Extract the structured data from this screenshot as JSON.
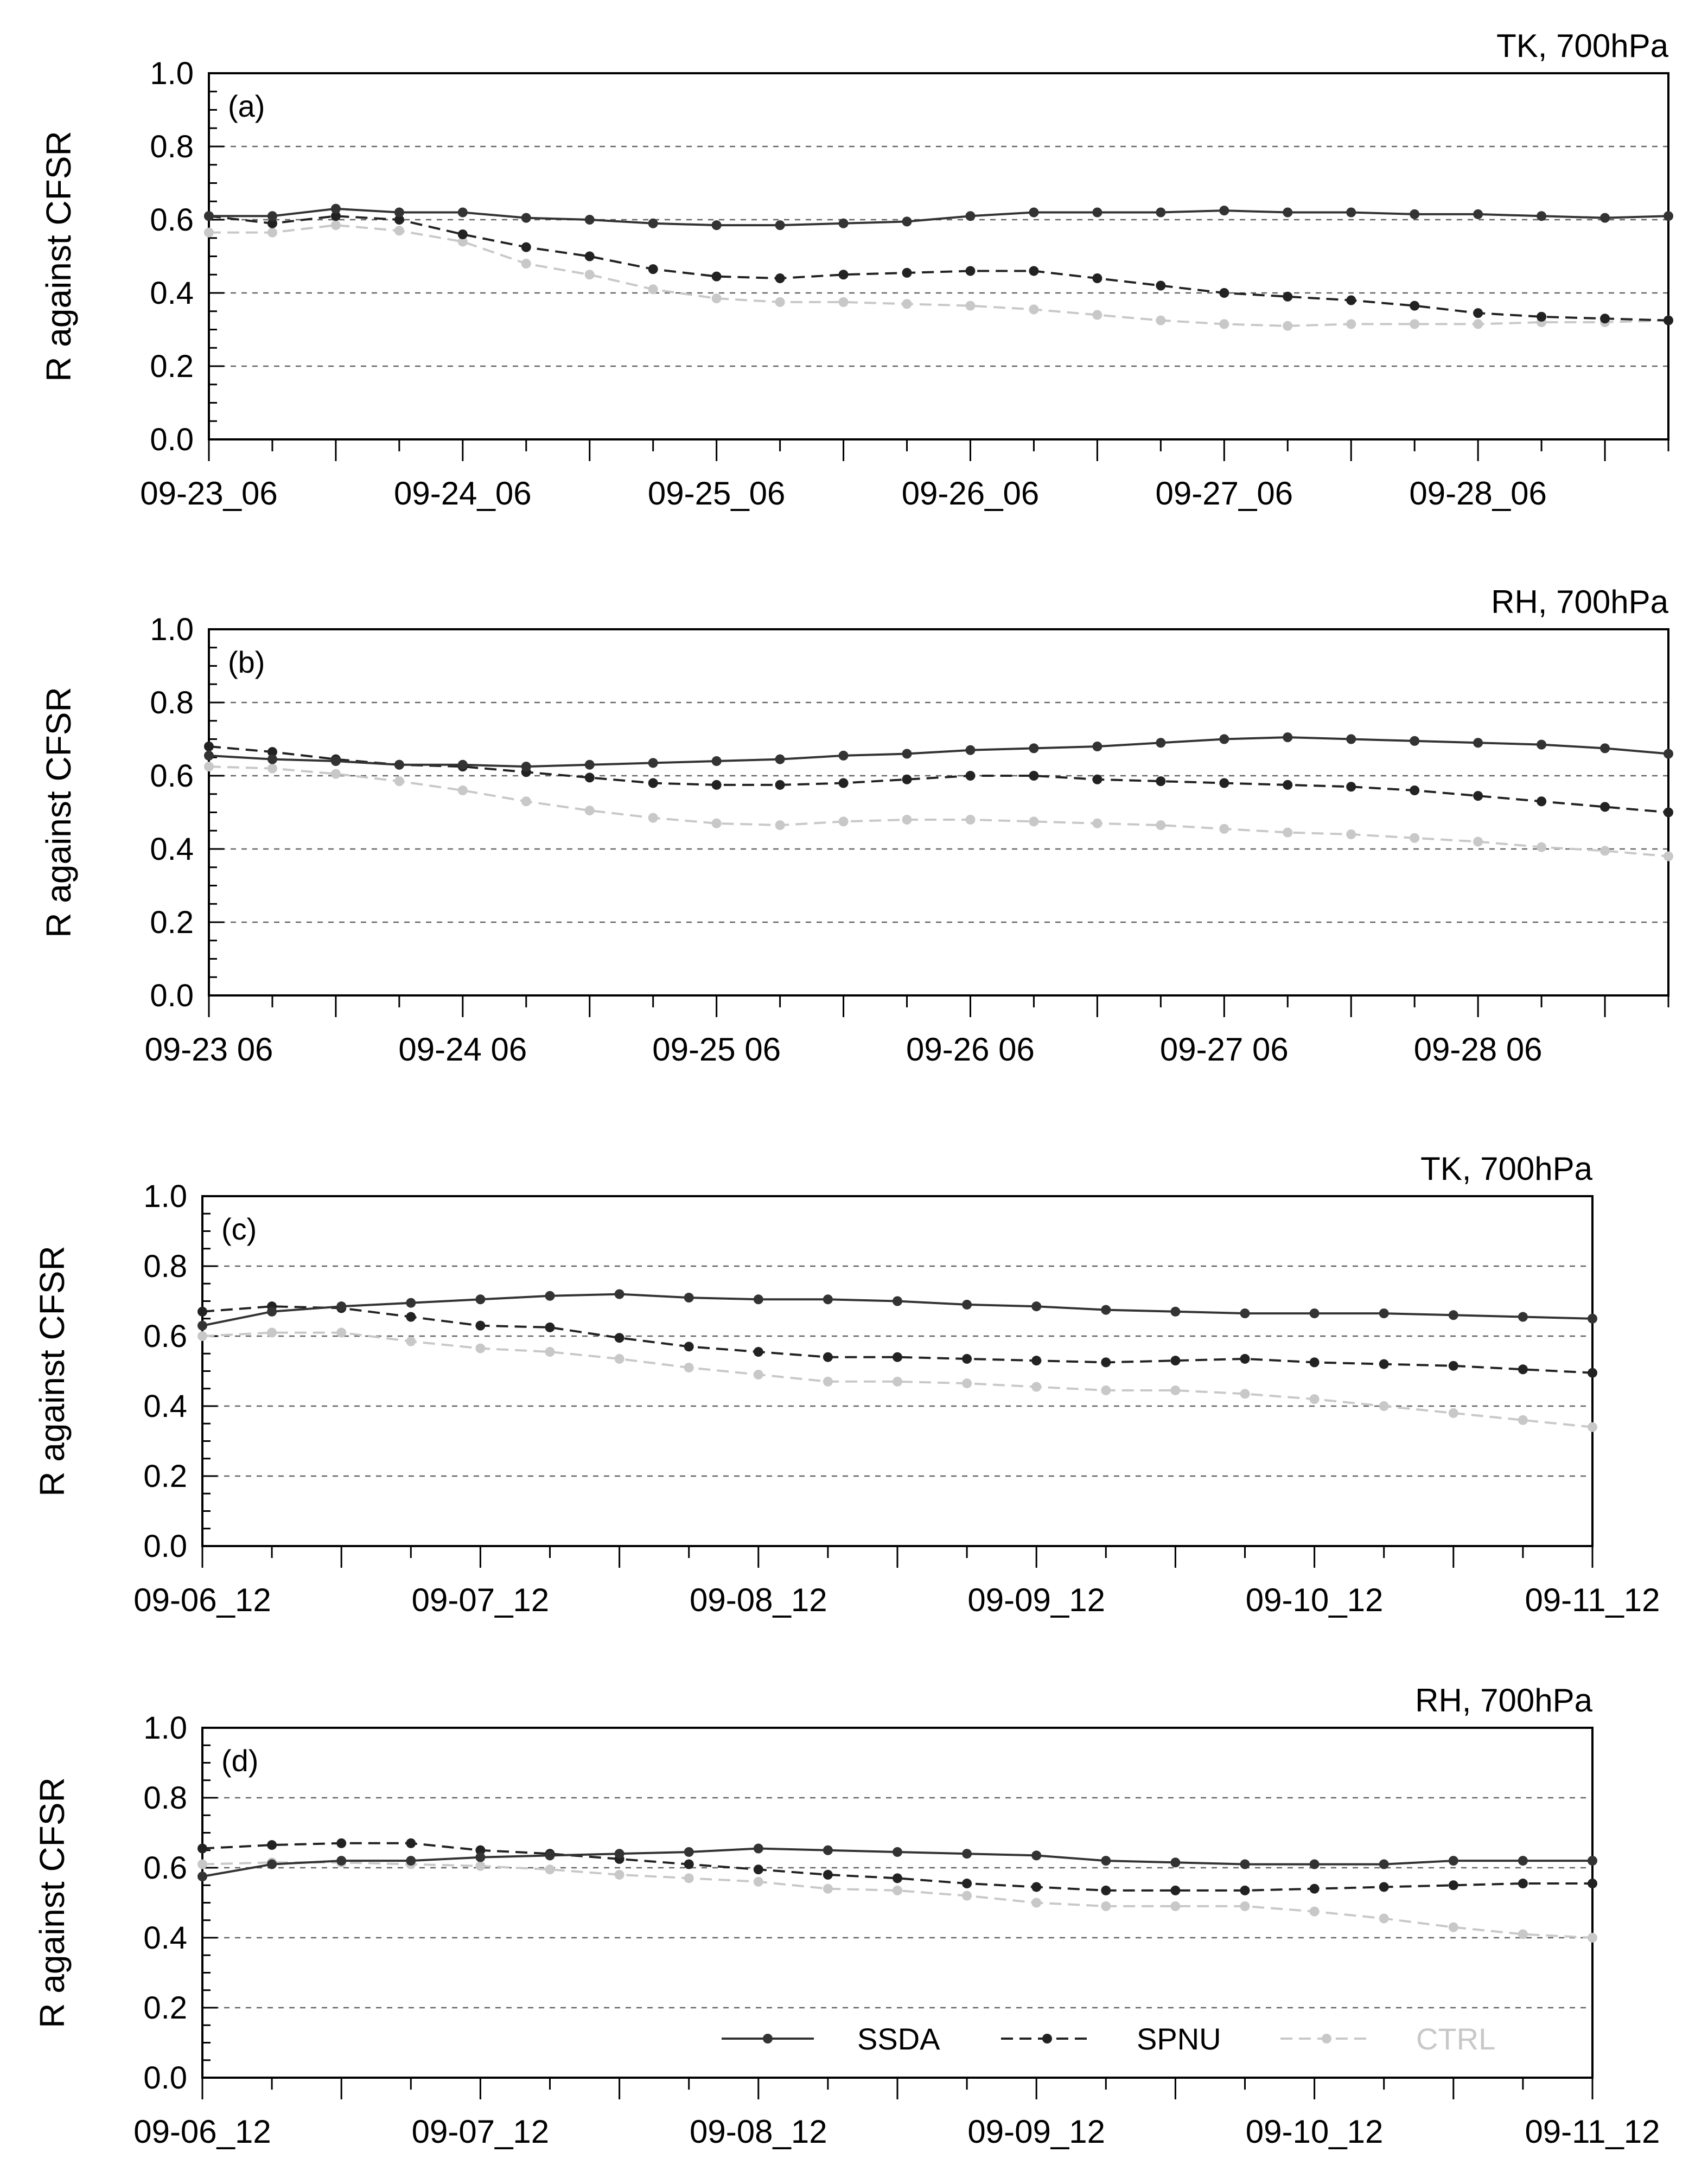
{
  "chart_data": [
    {
      "type": "line",
      "panel": "(a)",
      "title": "TK, 700hPa",
      "ylabel": "R against CFSR",
      "ylim": [
        0,
        1
      ],
      "yticks": [
        "0.0",
        "0.2",
        "0.4",
        "0.6",
        "0.8",
        "1.0"
      ],
      "xtick_labels": [
        "09-23_06",
        "09-24_06",
        "09-25_06",
        "09-26_06",
        "09-27_06",
        "09-28_06"
      ],
      "series": [
        {
          "name": "SSDA",
          "values": [
            0.61,
            0.61,
            0.63,
            0.62,
            0.62,
            0.605,
            0.6,
            0.59,
            0.585,
            0.585,
            0.59,
            0.595,
            0.61,
            0.62,
            0.62,
            0.62,
            0.625,
            0.62,
            0.62,
            0.615,
            0.615,
            0.61,
            0.605,
            0.61
          ]
        },
        {
          "name": "SPNU",
          "values": [
            0.61,
            0.59,
            0.61,
            0.6,
            0.56,
            0.525,
            0.5,
            0.465,
            0.445,
            0.44,
            0.45,
            0.455,
            0.46,
            0.46,
            0.44,
            0.42,
            0.4,
            0.39,
            0.38,
            0.365,
            0.345,
            0.335,
            0.33,
            0.325
          ]
        },
        {
          "name": "CTRL",
          "values": [
            0.565,
            0.565,
            0.585,
            0.57,
            0.54,
            0.48,
            0.45,
            0.41,
            0.385,
            0.375,
            0.375,
            0.37,
            0.365,
            0.355,
            0.34,
            0.325,
            0.315,
            0.31,
            0.315,
            0.315,
            0.315,
            0.32,
            0.32,
            0.325
          ]
        }
      ]
    },
    {
      "type": "line",
      "panel": "(b)",
      "title": "RH, 700hPa",
      "ylabel": "R against CFSR",
      "ylim": [
        0,
        1
      ],
      "yticks": [
        "0.0",
        "0.2",
        "0.4",
        "0.6",
        "0.8",
        "1.0"
      ],
      "xtick_labels": [
        "09-23 06",
        "09-24 06",
        "09-25 06",
        "09-26 06",
        "09-27 06",
        "09-28 06"
      ],
      "series": [
        {
          "name": "SSDA",
          "values": [
            0.655,
            0.645,
            0.64,
            0.63,
            0.63,
            0.625,
            0.63,
            0.635,
            0.64,
            0.645,
            0.655,
            0.66,
            0.67,
            0.675,
            0.68,
            0.69,
            0.7,
            0.705,
            0.7,
            0.695,
            0.69,
            0.685,
            0.675,
            0.66
          ]
        },
        {
          "name": "SPNU",
          "values": [
            0.68,
            0.665,
            0.645,
            0.63,
            0.625,
            0.61,
            0.595,
            0.58,
            0.575,
            0.575,
            0.58,
            0.59,
            0.6,
            0.6,
            0.59,
            0.585,
            0.58,
            0.575,
            0.57,
            0.56,
            0.545,
            0.53,
            0.515,
            0.5
          ]
        },
        {
          "name": "CTRL",
          "values": [
            0.625,
            0.62,
            0.605,
            0.585,
            0.56,
            0.53,
            0.505,
            0.485,
            0.47,
            0.465,
            0.475,
            0.48,
            0.48,
            0.475,
            0.47,
            0.465,
            0.455,
            0.445,
            0.44,
            0.43,
            0.42,
            0.405,
            0.395,
            0.38
          ]
        }
      ]
    },
    {
      "type": "line",
      "panel": "(c)",
      "title": "TK, 700hPa",
      "ylabel": "R against CFSR",
      "ylim": [
        0,
        1
      ],
      "yticks": [
        "0.0",
        "0.2",
        "0.4",
        "0.6",
        "0.8",
        "1.0"
      ],
      "xtick_labels": [
        "09-06_12",
        "09-07_12",
        "09-08_12",
        "09-09_12",
        "09-10_12",
        "09-11_12"
      ],
      "series": [
        {
          "name": "SSDA",
          "values": [
            0.63,
            0.67,
            0.685,
            0.695,
            0.705,
            0.715,
            0.72,
            0.71,
            0.705,
            0.705,
            0.7,
            0.69,
            0.685,
            0.675,
            0.67,
            0.665,
            0.665,
            0.665,
            0.66,
            0.655,
            0.65
          ]
        },
        {
          "name": "SPNU",
          "values": [
            0.67,
            0.685,
            0.68,
            0.655,
            0.63,
            0.625,
            0.595,
            0.57,
            0.555,
            0.54,
            0.54,
            0.535,
            0.53,
            0.525,
            0.53,
            0.535,
            0.525,
            0.52,
            0.515,
            0.505,
            0.495
          ]
        },
        {
          "name": "CTRL",
          "values": [
            0.6,
            0.61,
            0.61,
            0.585,
            0.565,
            0.555,
            0.535,
            0.51,
            0.49,
            0.47,
            0.47,
            0.465,
            0.455,
            0.445,
            0.445,
            0.435,
            0.42,
            0.4,
            0.38,
            0.36,
            0.34
          ]
        }
      ]
    },
    {
      "type": "line",
      "panel": "(d)",
      "title": "RH, 700hPa",
      "ylabel": "R against CFSR",
      "ylim": [
        0,
        1
      ],
      "yticks": [
        "0.0",
        "0.2",
        "0.4",
        "0.6",
        "0.8",
        "1.0"
      ],
      "xtick_labels": [
        "09-06_12",
        "09-07_12",
        "09-08_12",
        "09-09_12",
        "09-10_12",
        "09-11_12"
      ],
      "legend": {
        "placement": "bottom-right",
        "entries": [
          "SSDA",
          "SPNU",
          "CTRL"
        ]
      },
      "series": [
        {
          "name": "SSDA",
          "values": [
            0.575,
            0.61,
            0.62,
            0.62,
            0.63,
            0.635,
            0.64,
            0.645,
            0.655,
            0.65,
            0.645,
            0.64,
            0.635,
            0.62,
            0.615,
            0.61,
            0.61,
            0.61,
            0.62,
            0.62,
            0.62
          ]
        },
        {
          "name": "SPNU",
          "values": [
            0.655,
            0.665,
            0.67,
            0.67,
            0.65,
            0.64,
            0.625,
            0.61,
            0.595,
            0.58,
            0.57,
            0.555,
            0.545,
            0.535,
            0.535,
            0.535,
            0.54,
            0.545,
            0.55,
            0.555,
            0.555
          ]
        },
        {
          "name": "CTRL",
          "values": [
            0.61,
            0.615,
            0.615,
            0.61,
            0.605,
            0.595,
            0.58,
            0.57,
            0.56,
            0.54,
            0.535,
            0.52,
            0.5,
            0.49,
            0.49,
            0.49,
            0.475,
            0.455,
            0.43,
            0.41,
            0.4
          ]
        }
      ]
    }
  ],
  "colors": {
    "SSDA": "#333333",
    "SPNU": "#222222",
    "CTRL": "#c8c8c8",
    "axis": "#000000",
    "grid": "#666666",
    "background": "#ffffff"
  }
}
